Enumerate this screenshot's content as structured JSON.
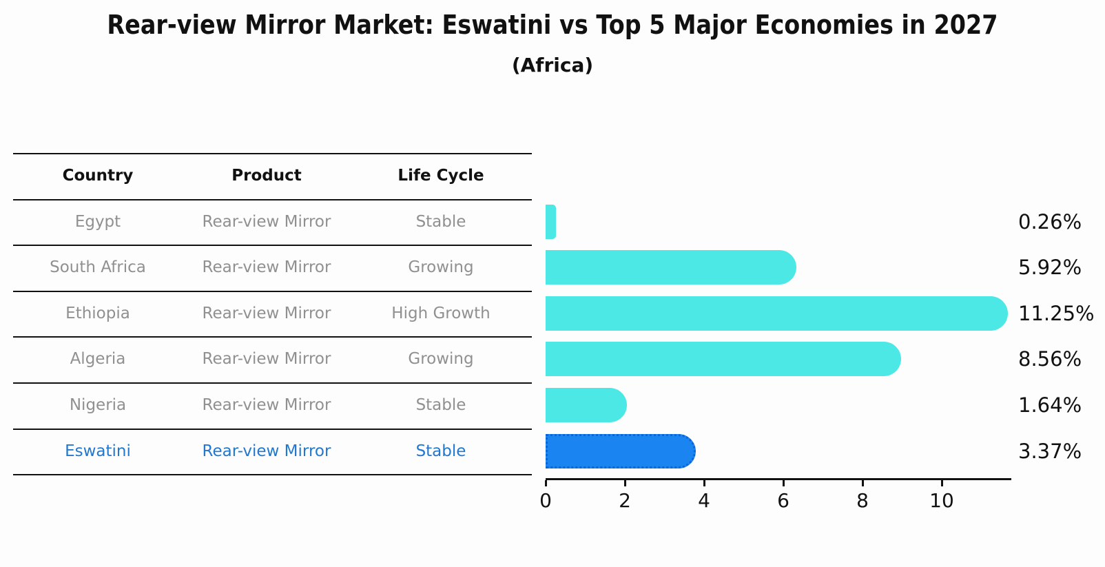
{
  "title": "Rear-view Mirror Market: Eswatini vs Top 5 Major Economies in 2027",
  "subtitle": "(Africa)",
  "table": {
    "headers": [
      "Country",
      "Product",
      "Life Cycle"
    ],
    "rows": [
      {
        "country": "Egypt",
        "product": "Rear-view Mirror",
        "life_cycle": "Stable"
      },
      {
        "country": "South Africa",
        "product": "Rear-view Mirror",
        "life_cycle": "Growing"
      },
      {
        "country": "Ethiopia",
        "product": "Rear-view Mirror",
        "life_cycle": "High Growth"
      },
      {
        "country": "Algeria",
        "product": "Rear-view Mirror",
        "life_cycle": "Growing"
      },
      {
        "country": "Nigeria",
        "product": "Rear-view Mirror",
        "life_cycle": "Stable"
      },
      {
        "country": "Eswatini",
        "product": "Rear-view Mirror",
        "life_cycle": "Stable"
      }
    ]
  },
  "chart_data": {
    "type": "bar",
    "orientation": "horizontal",
    "categories": [
      "Egypt",
      "South Africa",
      "Ethiopia",
      "Algeria",
      "Nigeria",
      "Eswatini"
    ],
    "values": [
      0.26,
      5.92,
      11.25,
      8.56,
      1.64,
      3.37
    ],
    "value_labels": [
      "0.26%",
      "5.92%",
      "11.25%",
      "8.56%",
      "1.64%",
      "3.37%"
    ],
    "x_ticks": [
      "0",
      "2",
      "4",
      "6",
      "8",
      "10"
    ],
    "xlim": [
      0,
      11.76
    ],
    "highlight_index": 5,
    "grid": false,
    "legend": "none",
    "title": "Rear-view Mirror Market: Eswatini vs Top 5 Major Economies in 2027 (Africa)"
  },
  "colors": {
    "bar": "#4BE8E6",
    "highlight_bar": "#1A84F0",
    "highlight_border": "#0D64D8",
    "highlight_text": "#2278CE",
    "row_text": "#909090",
    "header_text": "#111111",
    "axis": "#111111",
    "background": "#FDFDFD"
  }
}
